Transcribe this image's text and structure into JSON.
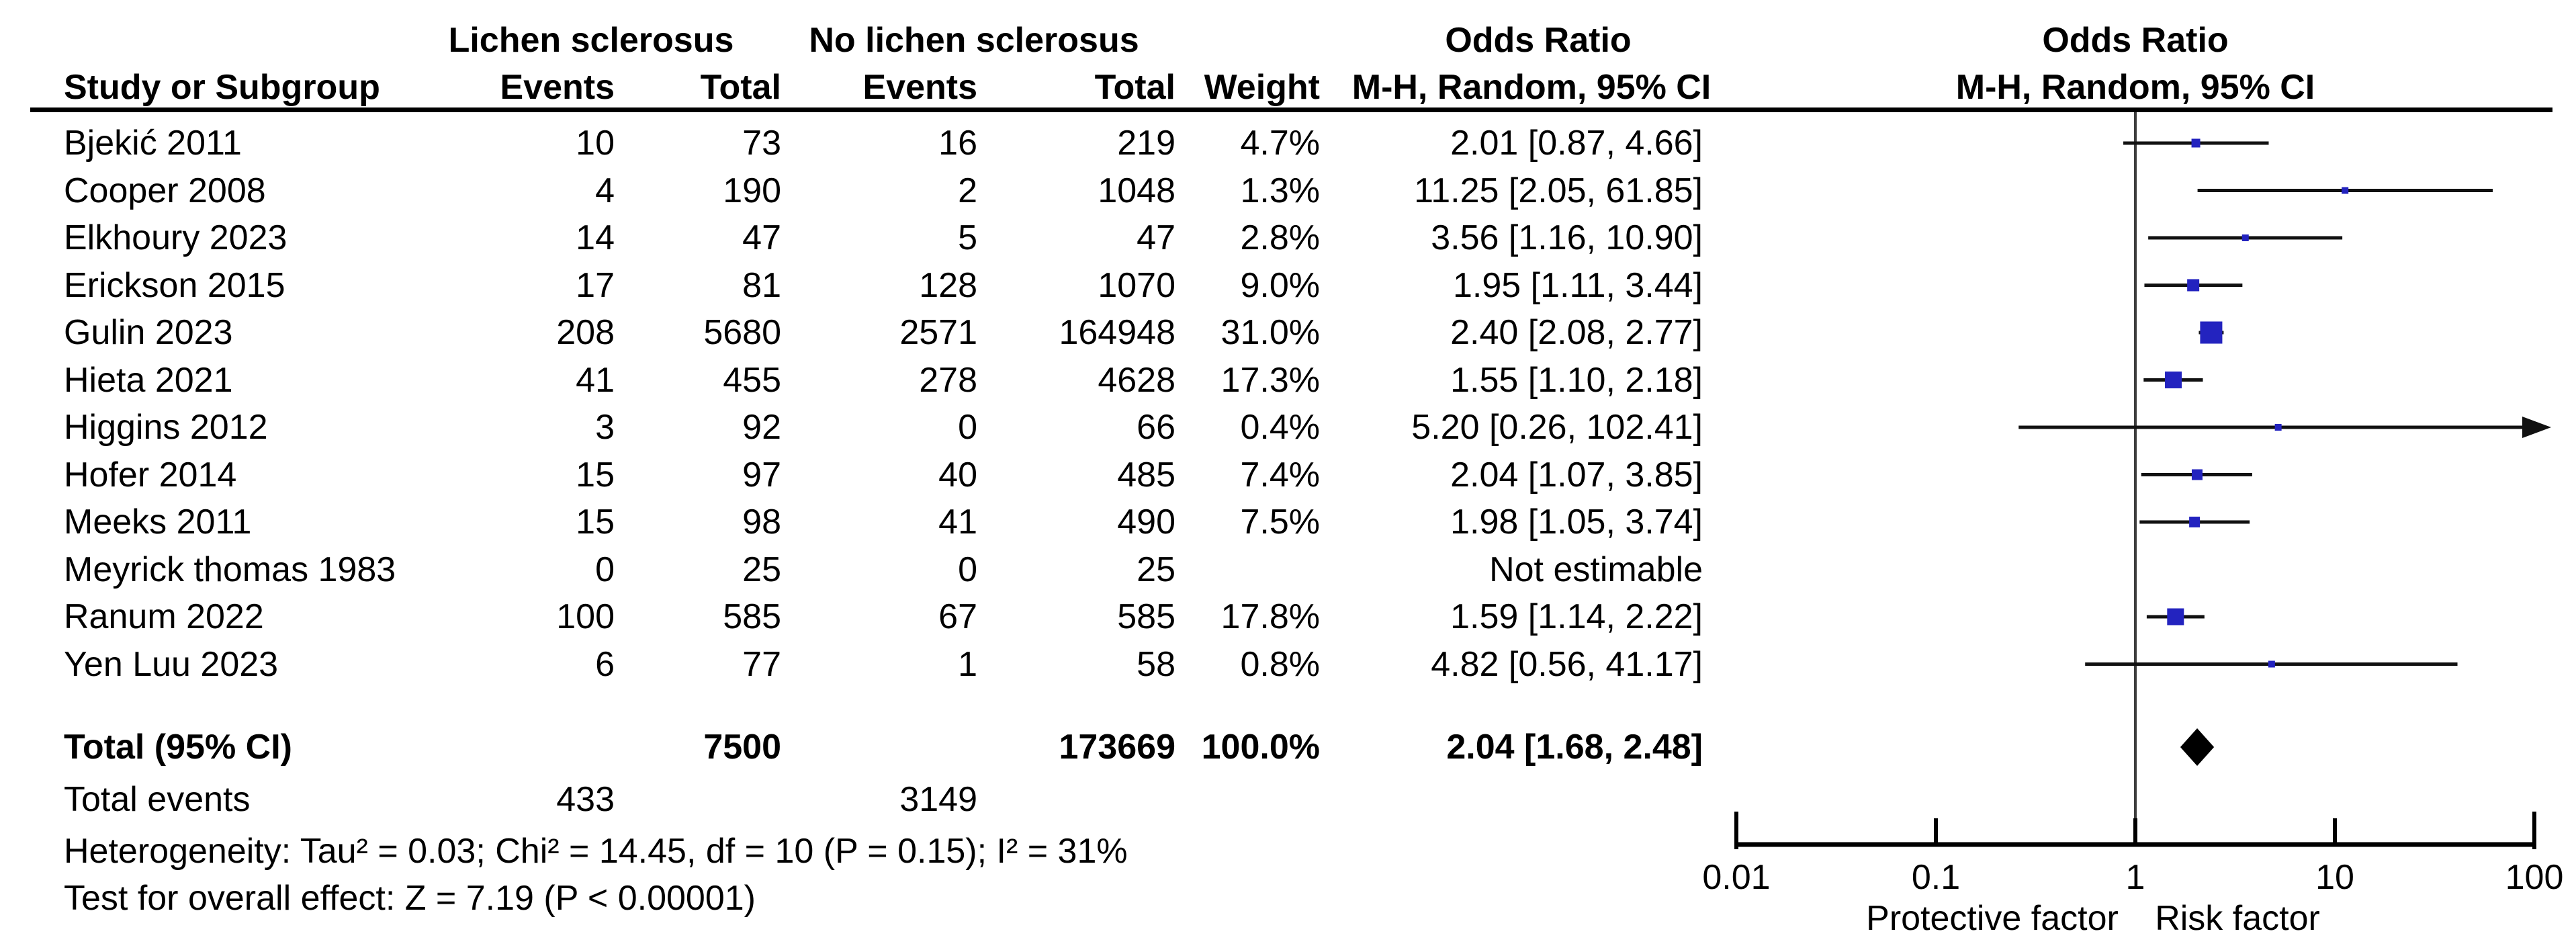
{
  "headers": {
    "study": "Study or Subgroup",
    "group1": "Lichen sclerosus",
    "group2": "No lichen sclerosus",
    "events": "Events",
    "total": "Total",
    "weight": "Weight",
    "or_title": "Odds Ratio",
    "or_subtitle": "M-H, Random, 95% CI"
  },
  "studies": [
    {
      "name": "Bjekić 2011",
      "e1": "10",
      "t1": "73",
      "e2": "16",
      "t2": "219",
      "weight": "4.7%",
      "or_text": "2.01 [0.87, 4.66]",
      "or": 2.01,
      "lo": 0.87,
      "hi": 4.66,
      "weight_num": 4.7,
      "estimable": true
    },
    {
      "name": "Cooper 2008",
      "e1": "4",
      "t1": "190",
      "e2": "2",
      "t2": "1048",
      "weight": "1.3%",
      "or_text": "11.25 [2.05, 61.85]",
      "or": 11.25,
      "lo": 2.05,
      "hi": 61.85,
      "weight_num": 1.3,
      "estimable": true
    },
    {
      "name": "Elkhoury 2023",
      "e1": "14",
      "t1": "47",
      "e2": "5",
      "t2": "47",
      "weight": "2.8%",
      "or_text": "3.56 [1.16, 10.90]",
      "or": 3.56,
      "lo": 1.16,
      "hi": 10.9,
      "weight_num": 2.8,
      "estimable": true
    },
    {
      "name": "Erickson 2015",
      "e1": "17",
      "t1": "81",
      "e2": "128",
      "t2": "1070",
      "weight": "9.0%",
      "or_text": "1.95 [1.11, 3.44]",
      "or": 1.95,
      "lo": 1.11,
      "hi": 3.44,
      "weight_num": 9.0,
      "estimable": true
    },
    {
      "name": "Gulin 2023",
      "e1": "208",
      "t1": "5680",
      "e2": "2571",
      "t2": "164948",
      "weight": "31.0%",
      "or_text": "2.40 [2.08, 2.77]",
      "or": 2.4,
      "lo": 2.08,
      "hi": 2.77,
      "weight_num": 31.0,
      "estimable": true
    },
    {
      "name": "Hieta 2021",
      "e1": "41",
      "t1": "455",
      "e2": "278",
      "t2": "4628",
      "weight": "17.3%",
      "or_text": "1.55 [1.10, 2.18]",
      "or": 1.55,
      "lo": 1.1,
      "hi": 2.18,
      "weight_num": 17.3,
      "estimable": true
    },
    {
      "name": "Higgins 2012",
      "e1": "3",
      "t1": "92",
      "e2": "0",
      "t2": "66",
      "weight": "0.4%",
      "or_text": "5.20 [0.26, 102.41]",
      "or": 5.2,
      "lo": 0.26,
      "hi": 102.41,
      "weight_num": 0.4,
      "estimable": true
    },
    {
      "name": "Hofer 2014",
      "e1": "15",
      "t1": "97",
      "e2": "40",
      "t2": "485",
      "weight": "7.4%",
      "or_text": "2.04 [1.07, 3.85]",
      "or": 2.04,
      "lo": 1.07,
      "hi": 3.85,
      "weight_num": 7.4,
      "estimable": true
    },
    {
      "name": "Meeks 2011",
      "e1": "15",
      "t1": "98",
      "e2": "41",
      "t2": "490",
      "weight": "7.5%",
      "or_text": "1.98 [1.05, 3.74]",
      "or": 1.98,
      "lo": 1.05,
      "hi": 3.74,
      "weight_num": 7.5,
      "estimable": true
    },
    {
      "name": "Meyrick thomas 1983",
      "e1": "0",
      "t1": "25",
      "e2": "0",
      "t2": "25",
      "weight": "",
      "or_text": "Not estimable",
      "or": null,
      "lo": null,
      "hi": null,
      "weight_num": 0,
      "estimable": false
    },
    {
      "name": "Ranum 2022",
      "e1": "100",
      "t1": "585",
      "e2": "67",
      "t2": "585",
      "weight": "17.8%",
      "or_text": "1.59 [1.14, 2.22]",
      "or": 1.59,
      "lo": 1.14,
      "hi": 2.22,
      "weight_num": 17.8,
      "estimable": true
    },
    {
      "name": "Yen Luu 2023",
      "e1": "6",
      "t1": "77",
      "e2": "1",
      "t2": "58",
      "weight": "0.8%",
      "or_text": "4.82 [0.56, 41.17]",
      "or": 4.82,
      "lo": 0.56,
      "hi": 41.17,
      "weight_num": 0.8,
      "estimable": true
    }
  ],
  "total_row": {
    "label": "Total (95% CI)",
    "t1": "7500",
    "t2": "173669",
    "weight": "100.0%",
    "or_text": "2.04 [1.68, 2.48]",
    "or": 2.04,
    "lo": 1.68,
    "hi": 2.48
  },
  "total_events_row": {
    "label": "Total events",
    "e1": "433",
    "e2": "3149"
  },
  "stats": {
    "heterogeneity": "Heterogeneity: Tau² = 0.03; Chi² = 14.45, df = 10 (P = 0.15); I² = 31%",
    "overall_effect": "Test for overall effect: Z = 7.19 (P < 0.00001)"
  },
  "axis": {
    "ticks": [
      {
        "v": 0.01,
        "label": "0.01"
      },
      {
        "v": 0.1,
        "label": "0.1"
      },
      {
        "v": 1,
        "label": "1"
      },
      {
        "v": 10,
        "label": "10"
      },
      {
        "v": 100,
        "label": "100"
      }
    ],
    "left_caption": "Protective factor",
    "right_caption": "Risk factor"
  },
  "colors": {
    "marker_blue": "#2323BF",
    "ci_line": "#111111",
    "diamond": "#000000",
    "axis": "#000000",
    "no_effect_line": "#3d3d3d"
  },
  "chart_data": {
    "type": "scatter",
    "variant": "forest-plot",
    "title": "Odds Ratio  M-H, Random, 95% CI",
    "x_scale": "log10",
    "x_range": [
      0.01,
      100
    ],
    "x_ticks": [
      0.01,
      0.1,
      1,
      10,
      100
    ],
    "x_axis_captions": [
      "Protective factor",
      "Risk factor"
    ],
    "grid": false,
    "series": [
      {
        "name": "Bjekić 2011",
        "or": 2.01,
        "ci": [
          0.87,
          4.66
        ],
        "weight_pct": 4.7
      },
      {
        "name": "Cooper 2008",
        "or": 11.25,
        "ci": [
          2.05,
          61.85
        ],
        "weight_pct": 1.3
      },
      {
        "name": "Elkhoury 2023",
        "or": 3.56,
        "ci": [
          1.16,
          10.9
        ],
        "weight_pct": 2.8
      },
      {
        "name": "Erickson 2015",
        "or": 1.95,
        "ci": [
          1.11,
          3.44
        ],
        "weight_pct": 9.0
      },
      {
        "name": "Gulin 2023",
        "or": 2.4,
        "ci": [
          2.08,
          2.77
        ],
        "weight_pct": 31.0
      },
      {
        "name": "Hieta 2021",
        "or": 1.55,
        "ci": [
          1.1,
          2.18
        ],
        "weight_pct": 17.3
      },
      {
        "name": "Higgins 2012",
        "or": 5.2,
        "ci": [
          0.26,
          102.41
        ],
        "weight_pct": 0.4
      },
      {
        "name": "Hofer 2014",
        "or": 2.04,
        "ci": [
          1.07,
          3.85
        ],
        "weight_pct": 7.4
      },
      {
        "name": "Meeks 2011",
        "or": 1.98,
        "ci": [
          1.05,
          3.74
        ],
        "weight_pct": 7.5
      },
      {
        "name": "Meyrick thomas 1983",
        "or": null,
        "ci": null,
        "weight_pct": null,
        "note": "Not estimable"
      },
      {
        "name": "Ranum 2022",
        "or": 1.59,
        "ci": [
          1.14,
          2.22
        ],
        "weight_pct": 17.8
      },
      {
        "name": "Yen Luu 2023",
        "or": 4.82,
        "ci": [
          0.56,
          41.17
        ],
        "weight_pct": 0.8
      }
    ],
    "summary": {
      "name": "Total (95% CI)",
      "or": 2.04,
      "ci": [
        1.68,
        2.48
      ],
      "weight_pct": 100.0
    }
  }
}
